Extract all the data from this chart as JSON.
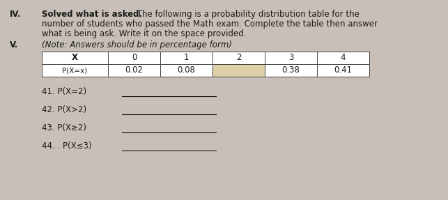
{
  "background_color": "#c8c0b8",
  "content_bg": "#e8e4e0",
  "section_iv_label": "IV.",
  "section_iv_bold": "Solved what is asked.",
  "section_iv_rest": " The following is a probability distribution table for the",
  "section_iv_line2": "number of students who passed the Math exam. Complete the table then answer",
  "section_iv_line3": "what is being ask. Write it on the space provided.",
  "section_v_label": "V.",
  "section_v_text": "(Note: Answers should be in percentage form)",
  "table_headers": [
    "X",
    "0",
    "1",
    "2",
    "3",
    "4"
  ],
  "table_row_label": "P(X=x)",
  "table_values": [
    "0.02",
    "0.08",
    "",
    "0.38",
    "0.41"
  ],
  "highlight_color": "#dfd0a8",
  "questions": [
    "41. P(X=2)",
    "42. P(X>2)",
    "43. P(X≥2)",
    "44. . P(X≤3)"
  ],
  "text_color": "#1a1a1a",
  "table_border_color": "#444444"
}
